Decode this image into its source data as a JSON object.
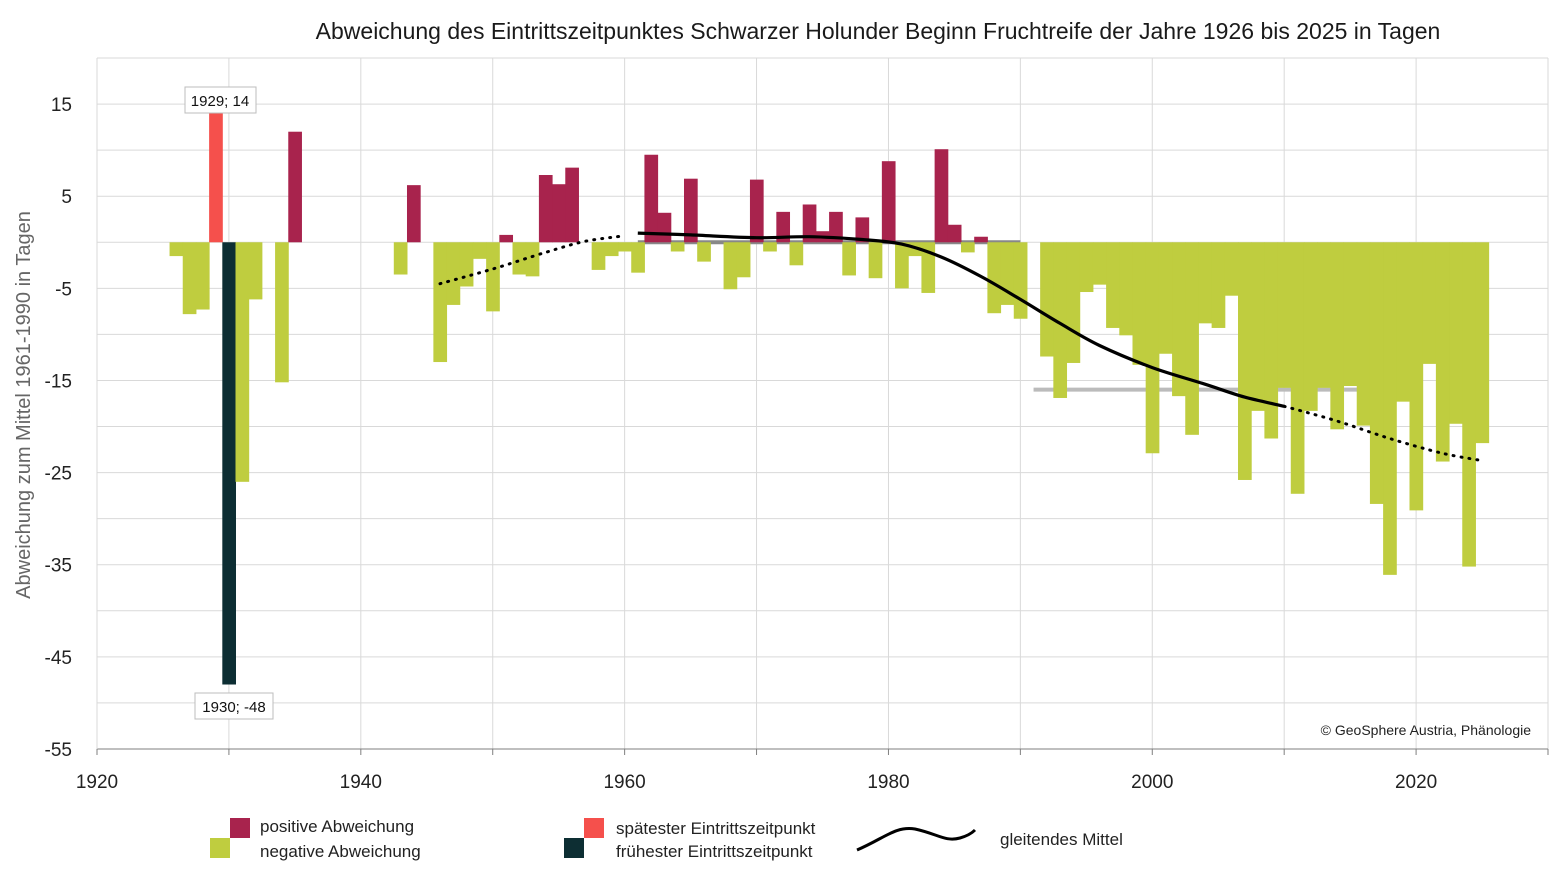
{
  "chart_data": {
    "type": "bar",
    "title": "Abweichung des Eintrittszeitpunktes Schwarzer Holunder Beginn Fruchtreife der Jahre 1926 bis 2025 in Tagen",
    "ylabel": "Abweichung zum Mittel 1961-1990 in Tagen",
    "xlabel": "",
    "xlim": [
      1920,
      2030
    ],
    "ylim": [
      -55,
      20
    ],
    "xticks": [
      1920,
      1940,
      1960,
      1980,
      2000,
      2020
    ],
    "yticks": [
      15,
      5,
      -5,
      -15,
      -25,
      -35,
      -45,
      -55
    ],
    "grid": true,
    "colors": {
      "positive": "#a8234d",
      "negative": "#bfcd3f",
      "latest": "#f5504c",
      "earliest": "#0d2e33",
      "moving_average": "#000000",
      "mean_1961_1990": "#888888",
      "mean_1991_2020": "#bbbbbb"
    },
    "legend": {
      "positive": "positive Abweichung",
      "negative": "negative Abweichung",
      "latest": "spätester Eintrittszeitpunkt",
      "earliest": "frühester Eintrittszeitpunkt",
      "moving_average": "gleitendes Mittel"
    },
    "annotations": {
      "latest_label": "1929; 14",
      "earliest_label": "1930; -48"
    },
    "credit": "© GeoSphere Austria, Phänologie",
    "latest": {
      "year": 1929,
      "value": 14
    },
    "earliest": {
      "year": 1930,
      "value": -48
    },
    "bars": [
      {
        "year": 1926,
        "value": -1.5
      },
      {
        "year": 1927,
        "value": -7.8
      },
      {
        "year": 1928,
        "value": -7.3
      },
      {
        "year": 1929,
        "value": 14
      },
      {
        "year": 1930,
        "value": -48
      },
      {
        "year": 1931,
        "value": -26
      },
      {
        "year": 1932,
        "value": -6.2
      },
      {
        "year": 1934,
        "value": -15.2
      },
      {
        "year": 1935,
        "value": 12
      },
      {
        "year": 1943,
        "value": -3.5
      },
      {
        "year": 1944,
        "value": 6.2
      },
      {
        "year": 1946,
        "value": -13
      },
      {
        "year": 1947,
        "value": -6.8
      },
      {
        "year": 1948,
        "value": -4.8
      },
      {
        "year": 1949,
        "value": -1.8
      },
      {
        "year": 1950,
        "value": -7.5
      },
      {
        "year": 1951,
        "value": 0.8
      },
      {
        "year": 1952,
        "value": -3.5
      },
      {
        "year": 1953,
        "value": -3.7
      },
      {
        "year": 1954,
        "value": 7.3
      },
      {
        "year": 1955,
        "value": 6.3
      },
      {
        "year": 1956,
        "value": 8.1
      },
      {
        "year": 1958,
        "value": -3
      },
      {
        "year": 1959,
        "value": -1.5
      },
      {
        "year": 1960,
        "value": -1
      },
      {
        "year": 1961,
        "value": -3.3
      },
      {
        "year": 1962,
        "value": 9.5
      },
      {
        "year": 1963,
        "value": 3.2
      },
      {
        "year": 1964,
        "value": -1
      },
      {
        "year": 1965,
        "value": 6.9
      },
      {
        "year": 1966,
        "value": -2.1
      },
      {
        "year": 1968,
        "value": -5.1
      },
      {
        "year": 1969,
        "value": -3.8
      },
      {
        "year": 1970,
        "value": 6.8
      },
      {
        "year": 1971,
        "value": -1
      },
      {
        "year": 1972,
        "value": 3.3
      },
      {
        "year": 1973,
        "value": -2.5
      },
      {
        "year": 1974,
        "value": 4.1
      },
      {
        "year": 1975,
        "value": 1.2
      },
      {
        "year": 1976,
        "value": 3.3
      },
      {
        "year": 1977,
        "value": -3.6
      },
      {
        "year": 1978,
        "value": 2.7
      },
      {
        "year": 1979,
        "value": -3.9
      },
      {
        "year": 1980,
        "value": 8.8
      },
      {
        "year": 1981,
        "value": -5
      },
      {
        "year": 1982,
        "value": -1.5
      },
      {
        "year": 1983,
        "value": -5.5
      },
      {
        "year": 1984,
        "value": 10.1
      },
      {
        "year": 1985,
        "value": 1.9
      },
      {
        "year": 1986,
        "value": -1.1
      },
      {
        "year": 1987,
        "value": 0.6
      },
      {
        "year": 1988,
        "value": -7.7
      },
      {
        "year": 1989,
        "value": -6.8
      },
      {
        "year": 1990,
        "value": -8.3
      },
      {
        "year": 1992,
        "value": -12.4
      },
      {
        "year": 1993,
        "value": -16.9
      },
      {
        "year": 1994,
        "value": -13.1
      },
      {
        "year": 1995,
        "value": -5.4
      },
      {
        "year": 1996,
        "value": -4.6
      },
      {
        "year": 1997,
        "value": -9.3
      },
      {
        "year": 1998,
        "value": -10.1
      },
      {
        "year": 1999,
        "value": -13.3
      },
      {
        "year": 2000,
        "value": -22.9
      },
      {
        "year": 2001,
        "value": -12.1
      },
      {
        "year": 2002,
        "value": -16.7
      },
      {
        "year": 2003,
        "value": -20.9
      },
      {
        "year": 2004,
        "value": -8.8
      },
      {
        "year": 2005,
        "value": -9.3
      },
      {
        "year": 2006,
        "value": -5.8
      },
      {
        "year": 2007,
        "value": -25.8
      },
      {
        "year": 2008,
        "value": -18.3
      },
      {
        "year": 2009,
        "value": -21.3
      },
      {
        "year": 2010,
        "value": -15.8
      },
      {
        "year": 2011,
        "value": -27.3
      },
      {
        "year": 2012,
        "value": -18.3
      },
      {
        "year": 2013,
        "value": -15.8
      },
      {
        "year": 2014,
        "value": -20.3
      },
      {
        "year": 2015,
        "value": -15.6
      },
      {
        "year": 2016,
        "value": -19.9
      },
      {
        "year": 2017,
        "value": -28.4
      },
      {
        "year": 2018,
        "value": -36.1
      },
      {
        "year": 2019,
        "value": -17.3
      },
      {
        "year": 2020,
        "value": -29.1
      },
      {
        "year": 2021,
        "value": -13.2
      },
      {
        "year": 2022,
        "value": -23.8
      },
      {
        "year": 2023,
        "value": -19.7
      },
      {
        "year": 2024,
        "value": -35.2
      },
      {
        "year": 2025,
        "value": -21.8
      }
    ],
    "mean_1961_1990": {
      "x": [
        1961,
        1990
      ],
      "value": 0
    },
    "mean_1991_2020": {
      "x": [
        1991,
        2020
      ],
      "value": -16
    },
    "moving_average": {
      "solid": [
        [
          1961,
          1.0
        ],
        [
          1965,
          0.8
        ],
        [
          1970,
          0.5
        ],
        [
          1974,
          0.6
        ],
        [
          1978,
          0.3
        ],
        [
          1981,
          -0.2
        ],
        [
          1984,
          -1.6
        ],
        [
          1987,
          -3.7
        ],
        [
          1990,
          -6.2
        ],
        [
          1993,
          -8.8
        ],
        [
          1996,
          -11.2
        ],
        [
          2000,
          -13.6
        ],
        [
          2004,
          -15.4
        ],
        [
          2007,
          -16.8
        ],
        [
          2010,
          -17.8
        ]
      ],
      "dotted": [
        [
          [
            1946,
            -4.5
          ],
          [
            1950,
            -2.9
          ],
          [
            1954,
            -1.1
          ],
          [
            1957,
            0.1
          ],
          [
            1960,
            0.7
          ]
        ],
        [
          [
            2010,
            -17.8
          ],
          [
            2014,
            -19.4
          ],
          [
            2018,
            -21.3
          ],
          [
            2022,
            -22.9
          ],
          [
            2025,
            -23.7
          ]
        ]
      ]
    }
  }
}
